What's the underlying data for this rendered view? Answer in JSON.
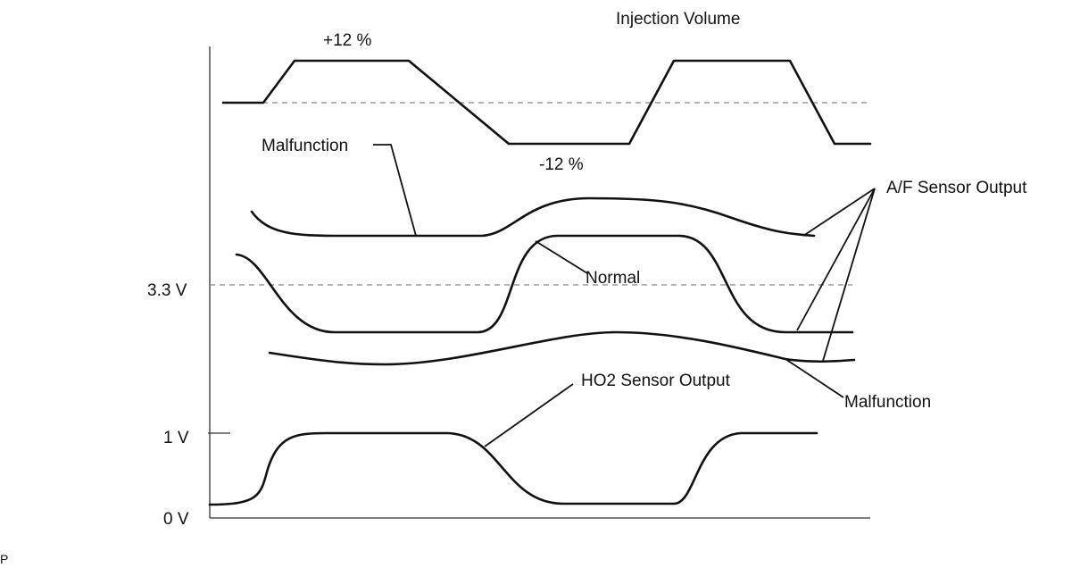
{
  "labels": {
    "injection_volume": "Injection Volume",
    "plus_pct": "+12 %",
    "minus_pct": "-12 %",
    "malfunction_top": "Malfunction",
    "af_sensor_output": "A/F Sensor Output",
    "normal": "Normal",
    "malfunction_bottom": "Malfunction",
    "ho2_sensor_output": "HO2 Sensor Output",
    "corner_mark": "P"
  },
  "axis_ticks": {
    "v33": "3.3 V",
    "v1": "1 V",
    "v0": "0 V"
  }
}
